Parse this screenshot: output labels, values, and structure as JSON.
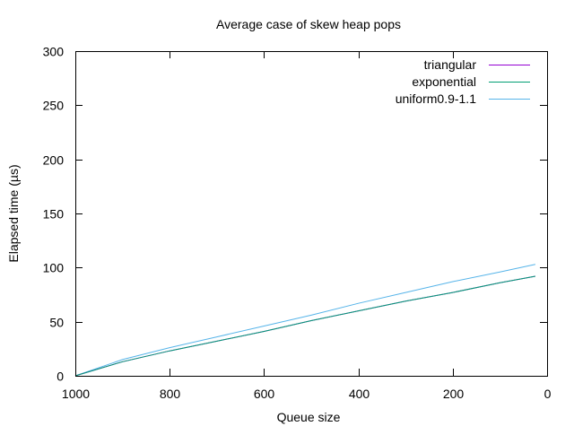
{
  "chart_data": {
    "type": "line",
    "title": "Average case of skew heap pops",
    "xlabel": "Queue size",
    "ylabel": "Elapsed time (µs)",
    "xlim": [
      1000,
      0
    ],
    "ylim": [
      0,
      300
    ],
    "x_reversed": true,
    "grid": false,
    "legend_position": "top-right",
    "xticks": [
      1000,
      800,
      600,
      400,
      200,
      0
    ],
    "yticks": [
      0,
      50,
      100,
      150,
      200,
      250,
      300
    ],
    "series": [
      {
        "name": "triangular",
        "color": "#9400d3",
        "x": [
          1000,
          900,
          800,
          700,
          600,
          500,
          400,
          300,
          200,
          100,
          25
        ],
        "y": [
          0,
          13,
          23,
          32,
          41,
          51,
          60,
          69,
          77,
          86,
          92
        ]
      },
      {
        "name": "exponential",
        "color": "#009e73",
        "x": [
          1000,
          900,
          800,
          700,
          600,
          500,
          400,
          300,
          200,
          100,
          25
        ],
        "y": [
          0,
          13,
          23,
          32,
          41,
          51,
          60,
          69,
          77,
          86,
          92
        ]
      },
      {
        "name": "uniform0.9-1.1",
        "color": "#56b4e9",
        "x": [
          1000,
          900,
          800,
          700,
          600,
          500,
          400,
          300,
          200,
          100,
          25
        ],
        "y": [
          0,
          15,
          26,
          36,
          46,
          56,
          67,
          77,
          87,
          96,
          103
        ]
      }
    ]
  }
}
